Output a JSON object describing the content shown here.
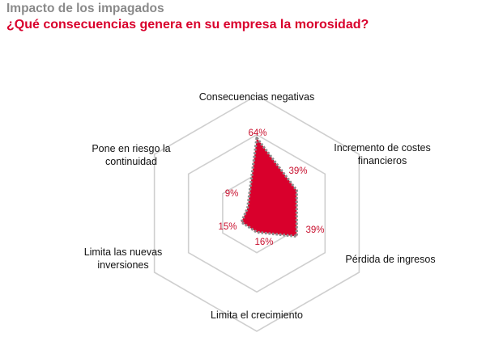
{
  "header": {
    "title": "Impacto de los impagados",
    "subtitle": "¿Qué consecuencias genera en su empresa la morosidad?"
  },
  "chart_data": {
    "type": "radar",
    "title": "¿Qué consecuencias genera en su empresa la morosidad?",
    "categories": [
      "Consecuencias negativas",
      "Incremento de costes financieros",
      "Pérdida de ingresos",
      "Limita el crecimiento",
      "Limita las nuevas inversiones",
      "Pone en riesgo la continuidad"
    ],
    "category_label_lines": [
      [
        "Consecuencias negativas"
      ],
      [
        "Incremento de costes",
        "financieros"
      ],
      [
        "Pérdida de ingresos"
      ],
      [
        "Limita el crecimiento"
      ],
      [
        "Limita las nuevas",
        "inversiones"
      ],
      [
        "Pone en riesgo la",
        "continuidad"
      ]
    ],
    "series": [
      {
        "values": [
          64,
          39,
          39,
          16,
          15,
          9
        ],
        "labels": [
          "64%",
          "39%",
          "39%",
          "16%",
          "15%",
          "9%"
        ],
        "color": "#d9002c",
        "outline_color": "#8c8c8c"
      }
    ],
    "rlim": [
      0,
      100
    ],
    "grid_rings": 3,
    "grid_color": "#cfcfcf",
    "legend": "none"
  }
}
